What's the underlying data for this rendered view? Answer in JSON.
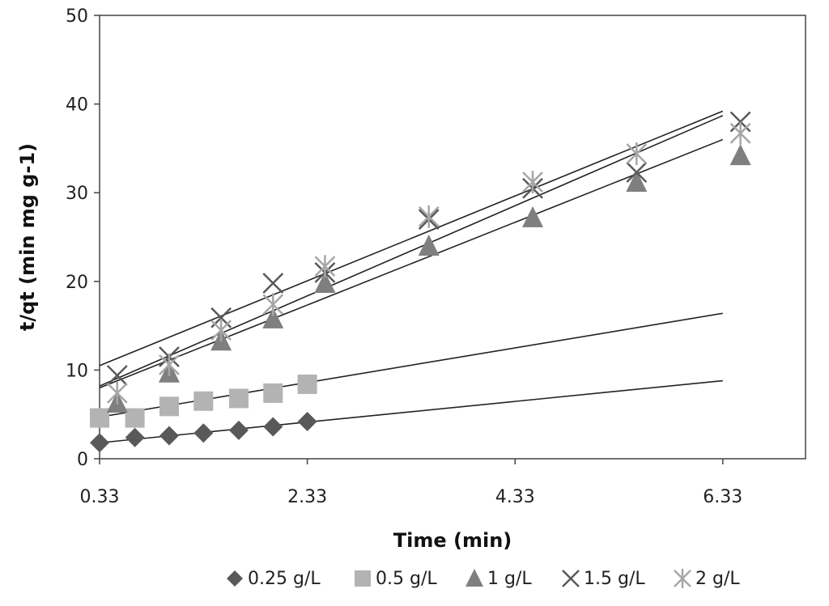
{
  "chart_data": {
    "type": "scatter",
    "title": "",
    "xlabel": "Time (min)",
    "ylabel": "t/qt (min mg g-1)",
    "xlim": [
      0.33,
      7.33
    ],
    "ylim": [
      0,
      50
    ],
    "xticks": [
      0.33,
      2.33,
      4.33,
      6.33
    ],
    "xtick_labels": [
      "0.33",
      "2.33",
      "4.33",
      "6.33"
    ],
    "yticks": [
      0,
      10,
      20,
      30,
      40,
      50
    ],
    "ytick_labels": [
      "0",
      "10",
      "20",
      "30",
      "40",
      "50"
    ],
    "grid": false,
    "legend_position": "bottom",
    "series": [
      {
        "name": "0.25 g/L",
        "marker": "diamond",
        "color": "#595959",
        "x": [
          0.33,
          0.67,
          1.0,
          1.33,
          1.67,
          2.0,
          2.33
        ],
        "y": [
          1.8,
          2.4,
          2.6,
          2.9,
          3.2,
          3.6,
          4.2
        ],
        "fit": {
          "x": [
            0.33,
            6.33
          ],
          "y": [
            1.8,
            8.8
          ]
        }
      },
      {
        "name": "0.5 g/L",
        "marker": "square",
        "color": "#b3b3b3",
        "x": [
          0.33,
          0.67,
          1.0,
          1.33,
          1.67,
          2.0,
          2.33
        ],
        "y": [
          4.6,
          4.6,
          5.9,
          6.5,
          6.8,
          7.4,
          8.4
        ],
        "fit": {
          "x": [
            0.33,
            6.33
          ],
          "y": [
            4.7,
            16.4
          ]
        }
      },
      {
        "name": "1 g/L",
        "marker": "triangle",
        "color": "#7f7f7f",
        "x": [
          0.5,
          1.0,
          1.5,
          2.0,
          2.5,
          3.5,
          4.5,
          5.5,
          6.5
        ],
        "y": [
          6.3,
          9.7,
          13.3,
          15.8,
          19.8,
          24.0,
          27.2,
          31.2,
          34.2
        ],
        "fit": {
          "x": [
            0.33,
            6.33
          ],
          "y": [
            8.0,
            36.0
          ]
        }
      },
      {
        "name": "1.5 g/L",
        "marker": "x",
        "color": "#595959",
        "x": [
          0.5,
          1.0,
          1.5,
          2.0,
          2.5,
          3.5,
          4.5,
          5.5,
          6.5
        ],
        "y": [
          9.4,
          11.5,
          15.9,
          19.8,
          21.0,
          27.0,
          30.5,
          32.3,
          38.0
        ],
        "fit": {
          "x": [
            0.33,
            6.33
          ],
          "y": [
            10.5,
            39.2
          ]
        }
      },
      {
        "name": "2 g/L",
        "marker": "asterisk",
        "color": "#a6a6a6",
        "x": [
          0.5,
          1.0,
          1.5,
          2.0,
          2.5,
          3.5,
          4.5,
          5.5,
          6.5
        ],
        "y": [
          7.4,
          10.6,
          14.5,
          17.4,
          21.7,
          27.3,
          31.2,
          34.4,
          36.7
        ],
        "fit": {
          "x": [
            0.33,
            6.33
          ],
          "y": [
            8.2,
            38.7
          ]
        }
      }
    ]
  }
}
